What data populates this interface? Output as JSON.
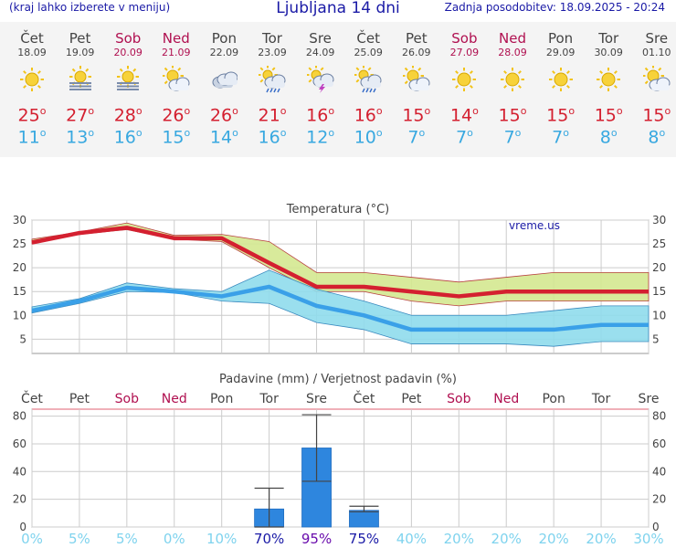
{
  "header": {
    "menu_hint": "(kraj lahko izberete v meniju)",
    "title": "Ljubljana 14 dni",
    "updated": "Zadnja posodobitev: 18.09.2025 - 20:24"
  },
  "days": [
    {
      "name": "Čet",
      "date": "18.09",
      "weekend": false,
      "icon": "sun-icon",
      "tmax": "25",
      "tmin": "11"
    },
    {
      "name": "Pet",
      "date": "19.09",
      "weekend": false,
      "icon": "sun-fog-icon",
      "tmax": "27",
      "tmin": "13"
    },
    {
      "name": "Sob",
      "date": "20.09",
      "weekend": true,
      "icon": "sun-fog-icon",
      "tmax": "28",
      "tmin": "16"
    },
    {
      "name": "Ned",
      "date": "21.09",
      "weekend": true,
      "icon": "sun-cloud-icon",
      "tmax": "26",
      "tmin": "15"
    },
    {
      "name": "Pon",
      "date": "22.09",
      "weekend": false,
      "icon": "cloudy-icon",
      "tmax": "26",
      "tmin": "14"
    },
    {
      "name": "Tor",
      "date": "23.09",
      "weekend": false,
      "icon": "sun-cloud-rain-icon",
      "tmax": "21",
      "tmin": "16"
    },
    {
      "name": "Sre",
      "date": "24.09",
      "weekend": false,
      "icon": "cloud-thunder-icon",
      "tmax": "16",
      "tmin": "12"
    },
    {
      "name": "Čet",
      "date": "25.09",
      "weekend": false,
      "icon": "sun-cloud-rain-icon",
      "tmax": "16",
      "tmin": "10"
    },
    {
      "name": "Pet",
      "date": "26.09",
      "weekend": false,
      "icon": "sun-cloud-icon",
      "tmax": "15",
      "tmin": "7"
    },
    {
      "name": "Sob",
      "date": "27.09",
      "weekend": true,
      "icon": "sun-icon",
      "tmax": "14",
      "tmin": "7"
    },
    {
      "name": "Ned",
      "date": "28.09",
      "weekend": true,
      "icon": "sun-icon",
      "tmax": "15",
      "tmin": "7"
    },
    {
      "name": "Pon",
      "date": "29.09",
      "weekend": false,
      "icon": "sun-icon",
      "tmax": "15",
      "tmin": "7"
    },
    {
      "name": "Tor",
      "date": "30.09",
      "weekend": false,
      "icon": "sun-icon",
      "tmax": "15",
      "tmin": "8"
    },
    {
      "name": "Sre",
      "date": "01.10",
      "weekend": false,
      "icon": "sun-cloud-icon",
      "tmax": "15",
      "tmin": "8"
    }
  ],
  "colors": {
    "weekend": "#b01050",
    "tmax": "#d42030",
    "tmin": "#38a8e0",
    "max_band": "#d4e890",
    "min_band": "#8fdcec",
    "overlap_band": "#9ad08a",
    "bar": "#2e86de",
    "prob_low": "#7fd3ee",
    "prob_high": "#1a1aa6",
    "prob_top": "#6a0dad"
  },
  "chart_data": [
    {
      "type": "line",
      "title": "Temperatura (°C)",
      "watermark": "vreme.us",
      "x": [
        "18.09",
        "19.09",
        "20.09",
        "21.09",
        "22.09",
        "23.09",
        "24.09",
        "25.09",
        "26.09",
        "27.09",
        "28.09",
        "29.09",
        "30.09",
        "01.10"
      ],
      "ylim": [
        2,
        30
      ],
      "yticks": [
        5,
        10,
        15,
        20,
        25,
        30
      ],
      "grid": true,
      "series": [
        {
          "values": [
            25.3,
            27.3,
            28.4,
            26.2,
            26.2,
            21,
            16,
            16,
            15,
            14,
            15,
            15,
            15,
            15
          ]
        },
        {
          "values": [
            11,
            13,
            15.8,
            15,
            14,
            16,
            12,
            10,
            7,
            7,
            7,
            7,
            8,
            8
          ]
        }
      ],
      "max_range_low": [
        25,
        27,
        28,
        26,
        25.5,
        20,
        15,
        15,
        13,
        12,
        13,
        13,
        13,
        13
      ],
      "max_range_high": [
        26,
        27.5,
        29.4,
        26.8,
        27,
        25.5,
        19,
        19,
        18,
        17,
        18,
        19,
        19,
        19
      ],
      "min_range_low": [
        10.5,
        12.5,
        15,
        14.8,
        13,
        12.5,
        8.5,
        7,
        4,
        4,
        4,
        3.5,
        4.5,
        4.5
      ],
      "min_range_high": [
        11.8,
        13.5,
        16.8,
        15.6,
        15,
        19.5,
        15.5,
        13,
        10,
        10,
        10,
        11,
        12,
        12
      ]
    },
    {
      "type": "bar",
      "title": "Padavine (mm) / Verjetnost padavin (%)",
      "categories": [
        "Čet",
        "Pet",
        "Sob",
        "Ned",
        "Pon",
        "Tor",
        "Sre",
        "Čet",
        "Pet",
        "Sob",
        "Ned",
        "Pon",
        "Tor",
        "Sre"
      ],
      "weekend": [
        false,
        false,
        true,
        true,
        false,
        false,
        false,
        false,
        false,
        true,
        true,
        false,
        false,
        false
      ],
      "values": [
        0,
        0,
        0,
        0,
        0,
        13,
        57,
        12,
        0,
        0,
        0,
        0,
        0,
        0
      ],
      "err_low": [
        null,
        null,
        null,
        null,
        null,
        0,
        33,
        11,
        null,
        null,
        null,
        null,
        null,
        null
      ],
      "err_high": [
        null,
        null,
        null,
        null,
        null,
        28,
        81,
        15,
        null,
        null,
        null,
        null,
        null,
        null
      ],
      "ylim": [
        0,
        85
      ],
      "yticks": [
        0,
        20,
        40,
        60,
        80
      ],
      "probability": [
        "0%",
        "5%",
        "5%",
        "0%",
        "10%",
        "70%",
        "95%",
        "75%",
        "40%",
        "20%",
        "20%",
        "20%",
        "20%",
        "30%"
      ]
    }
  ]
}
